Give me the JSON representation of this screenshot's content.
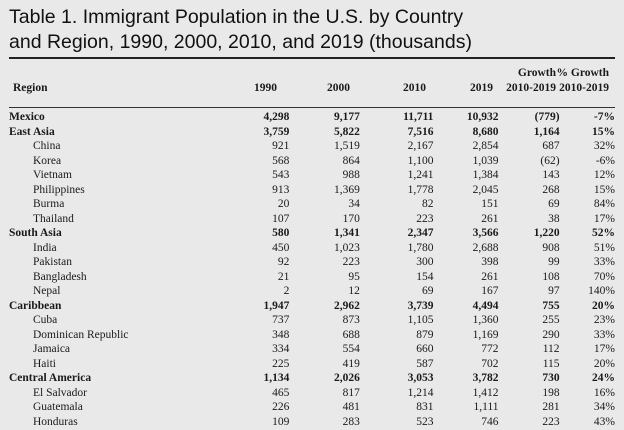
{
  "title": {
    "line1": "Table 1. Immigrant Population in the U.S. by Country",
    "line2": "and Region, 1990, 2000, 2010, and 2019 (thousands)"
  },
  "columns": {
    "region": "Region",
    "y1990": "1990",
    "y2000": "2000",
    "y2010": "2010",
    "y2019": "2019",
    "growth_top": "Growth",
    "growth_bottom": "2010-2019",
    "pct_top": "% Growth",
    "pct_bottom": "2010-2019"
  },
  "rows": [
    {
      "type": "group",
      "cells": [
        "Mexico",
        "4,298",
        "9,177",
        "11,711",
        "10,932",
        "(779)",
        "-7%"
      ]
    },
    {
      "type": "group",
      "cells": [
        "East Asia",
        "3,759",
        "5,822",
        "7,516",
        "8,680",
        "1,164",
        "15%"
      ]
    },
    {
      "type": "sub",
      "cells": [
        "China",
        "921",
        "1,519",
        "2,167",
        "2,854",
        "687",
        "32%"
      ]
    },
    {
      "type": "sub",
      "cells": [
        "Korea",
        "568",
        "864",
        "1,100",
        "1,039",
        "(62)",
        "-6%"
      ]
    },
    {
      "type": "sub",
      "cells": [
        "Vietnam",
        "543",
        "988",
        "1,241",
        "1,384",
        "143",
        "12%"
      ]
    },
    {
      "type": "sub",
      "cells": [
        "Philippines",
        "913",
        "1,369",
        "1,778",
        "2,045",
        "268",
        "15%"
      ]
    },
    {
      "type": "sub",
      "cells": [
        "Burma",
        "20",
        "34",
        "82",
        "151",
        "69",
        "84%"
      ]
    },
    {
      "type": "sub",
      "cells": [
        "Thailand",
        "107",
        "170",
        "223",
        "261",
        "38",
        "17%"
      ]
    },
    {
      "type": "group",
      "cells": [
        "South Asia",
        "580",
        "1,341",
        "2,347",
        "3,566",
        "1,220",
        "52%"
      ]
    },
    {
      "type": "sub",
      "cells": [
        "India",
        "450",
        "1,023",
        "1,780",
        "2,688",
        "908",
        "51%"
      ]
    },
    {
      "type": "sub",
      "cells": [
        "Pakistan",
        "92",
        "223",
        "300",
        "398",
        "99",
        "33%"
      ]
    },
    {
      "type": "sub",
      "cells": [
        "Bangladesh",
        "21",
        "95",
        "154",
        "261",
        "108",
        "70%"
      ]
    },
    {
      "type": "sub",
      "cells": [
        "Nepal",
        "2",
        "12",
        "69",
        "167",
        "97",
        "140%"
      ]
    },
    {
      "type": "group",
      "cells": [
        "Caribbean",
        "1,947",
        "2,962",
        "3,739",
        "4,494",
        "755",
        "20%"
      ]
    },
    {
      "type": "sub",
      "cells": [
        "Cuba",
        "737",
        "873",
        "1,105",
        "1,360",
        "255",
        "23%"
      ]
    },
    {
      "type": "sub",
      "cells": [
        "Dominican Republic",
        "348",
        "688",
        "879",
        "1,169",
        "290",
        "33%"
      ]
    },
    {
      "type": "sub",
      "cells": [
        "Jamaica",
        "334",
        "554",
        "660",
        "772",
        "112",
        "17%"
      ]
    },
    {
      "type": "sub",
      "cells": [
        "Haiti",
        "225",
        "419",
        "587",
        "702",
        "115",
        "20%"
      ]
    },
    {
      "type": "group",
      "cells": [
        "Central America",
        "1,134",
        "2,026",
        "3,053",
        "3,782",
        "730",
        "24%"
      ]
    },
    {
      "type": "sub",
      "cells": [
        "El Salvador",
        "465",
        "817",
        "1,214",
        "1,412",
        "198",
        "16%"
      ]
    },
    {
      "type": "sub",
      "cells": [
        "Guatemala",
        "226",
        "481",
        "831",
        "1,111",
        "281",
        "34%"
      ]
    },
    {
      "type": "sub",
      "cells": [
        "Honduras",
        "109",
        "283",
        "523",
        "746",
        "223",
        "43%"
      ]
    }
  ]
}
